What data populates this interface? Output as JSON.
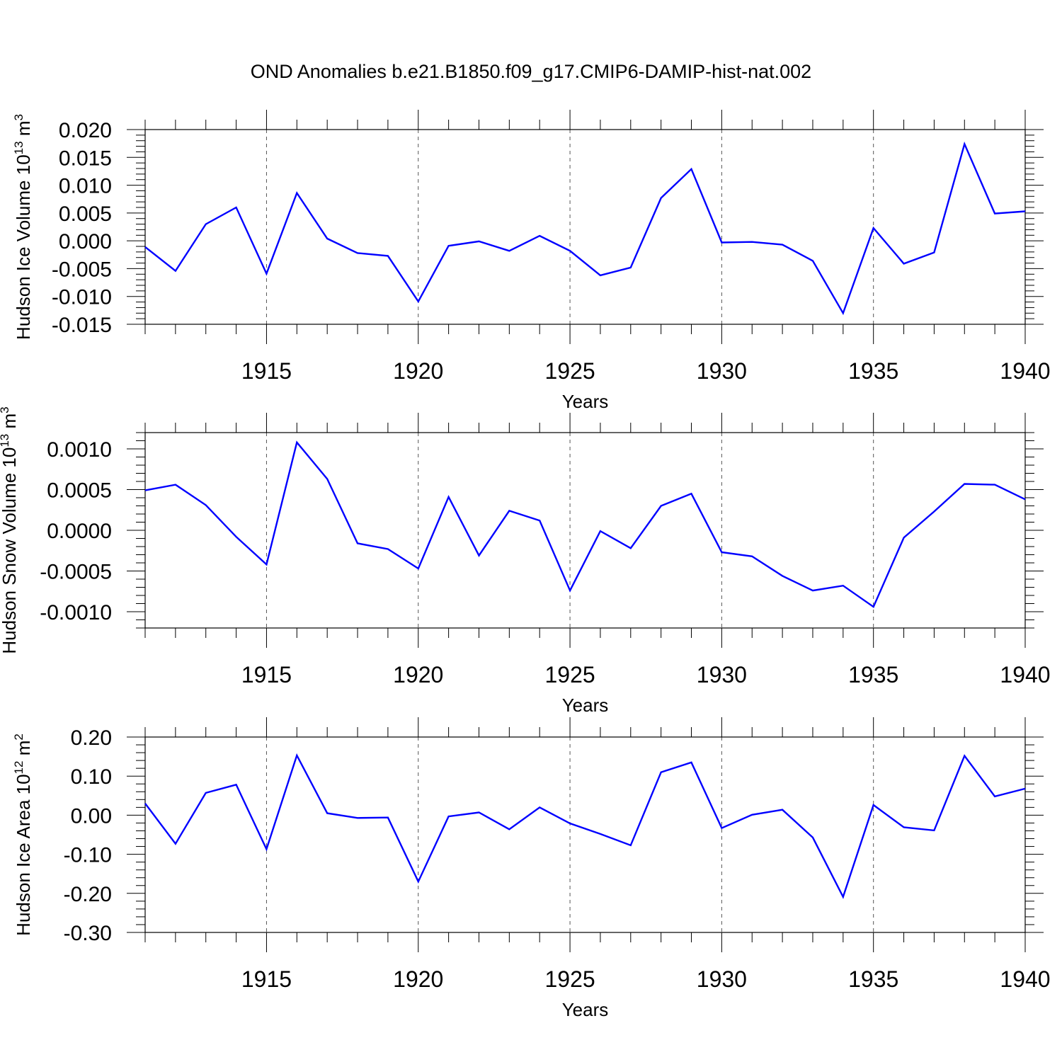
{
  "title": "OND Anomalies b.e21.B1850.f09_g17.CMIP6-DAMIP-hist-nat.002",
  "line_color": "#0000ff",
  "chart_data": [
    {
      "type": "line",
      "ylabel_base": "Hudson Ice Volume 10",
      "ylabel_exp": "13",
      "ylabel_unit": " m",
      "ylabel_unit_exp": "3",
      "xlabel": "Years",
      "xlim": [
        1911,
        1940
      ],
      "ylim": [
        -0.015,
        0.02
      ],
      "yticks": [
        {
          "v": 0.02,
          "label": "0.020"
        },
        {
          "v": 0.015,
          "label": "0.015"
        },
        {
          "v": 0.01,
          "label": "0.010"
        },
        {
          "v": 0.005,
          "label": "0.005"
        },
        {
          "v": 0.0,
          "label": "0.000"
        },
        {
          "v": -0.005,
          "label": "-0.005"
        },
        {
          "v": -0.01,
          "label": "-0.010"
        },
        {
          "v": -0.015,
          "label": "-0.015"
        }
      ],
      "xticks": [
        {
          "v": 1915,
          "label": "1915"
        },
        {
          "v": 1920,
          "label": "1920"
        },
        {
          "v": 1925,
          "label": "1925"
        },
        {
          "v": 1930,
          "label": "1930"
        },
        {
          "v": 1935,
          "label": "1935"
        },
        {
          "v": 1940,
          "label": "1940"
        }
      ],
      "x": [
        1911,
        1912,
        1913,
        1914,
        1915,
        1916,
        1917,
        1918,
        1919,
        1920,
        1921,
        1922,
        1923,
        1924,
        1925,
        1926,
        1927,
        1928,
        1929,
        1930,
        1931,
        1932,
        1933,
        1934,
        1935,
        1936,
        1937,
        1938,
        1939,
        1940
      ],
      "values": [
        -0.0011,
        -0.0054,
        0.003,
        0.006,
        -0.0059,
        0.0086,
        0.0004,
        -0.0022,
        -0.0027,
        -0.0109,
        -0.0009,
        -0.0001,
        -0.0018,
        0.0009,
        -0.0018,
        -0.0062,
        -0.0048,
        0.0077,
        0.0129,
        -0.0003,
        -0.0002,
        -0.0007,
        -0.0036,
        -0.013,
        0.0023,
        -0.0041,
        -0.0021,
        0.0174,
        0.0049,
        0.0053
      ]
    },
    {
      "type": "line",
      "ylabel_base": "Hudson Snow Volume 10",
      "ylabel_exp": "13",
      "ylabel_unit": " m",
      "ylabel_unit_exp": "3",
      "xlabel": "Years",
      "xlim": [
        1911,
        1940
      ],
      "ylim": [
        -0.0012,
        0.0012
      ],
      "yticks": [
        {
          "v": 0.001,
          "label": "0.0010"
        },
        {
          "v": 0.0005,
          "label": "0.0005"
        },
        {
          "v": 0.0,
          "label": "0.0000"
        },
        {
          "v": -0.0005,
          "label": "-0.0005"
        },
        {
          "v": -0.001,
          "label": "-0.0010"
        }
      ],
      "xticks": [
        {
          "v": 1915,
          "label": "1915"
        },
        {
          "v": 1920,
          "label": "1920"
        },
        {
          "v": 1925,
          "label": "1925"
        },
        {
          "v": 1930,
          "label": "1930"
        },
        {
          "v": 1935,
          "label": "1935"
        },
        {
          "v": 1940,
          "label": "1940"
        }
      ],
      "x": [
        1911,
        1912,
        1913,
        1914,
        1915,
        1916,
        1917,
        1918,
        1919,
        1920,
        1921,
        1922,
        1923,
        1924,
        1925,
        1926,
        1927,
        1928,
        1929,
        1930,
        1931,
        1932,
        1933,
        1934,
        1935,
        1936,
        1937,
        1938,
        1939,
        1940
      ],
      "values": [
        0.00049,
        0.00056,
        0.00031,
        -8e-05,
        -0.00042,
        0.00108,
        0.00063,
        -0.00016,
        -0.00023,
        -0.00047,
        0.00041,
        -0.00031,
        0.00024,
        0.00012,
        -0.00074,
        -1e-05,
        -0.00022,
        0.0003,
        0.00045,
        -0.00027,
        -0.00032,
        -0.00056,
        -0.00074,
        -0.00068,
        -0.00094,
        -9e-05,
        0.00023,
        0.00057,
        0.00056,
        0.00038
      ]
    },
    {
      "type": "line",
      "ylabel_base": "Hudson Ice Area 10",
      "ylabel_exp": "12",
      "ylabel_unit": " m",
      "ylabel_unit_exp": "2",
      "xlabel": "Years",
      "xlim": [
        1911,
        1940
      ],
      "ylim": [
        -0.3,
        0.2
      ],
      "yticks": [
        {
          "v": 0.2,
          "label": "0.20"
        },
        {
          "v": 0.1,
          "label": "0.10"
        },
        {
          "v": 0.0,
          "label": "0.00"
        },
        {
          "v": -0.1,
          "label": "-0.10"
        },
        {
          "v": -0.2,
          "label": "-0.20"
        },
        {
          "v": -0.3,
          "label": "-0.30"
        }
      ],
      "xticks": [
        {
          "v": 1915,
          "label": "1915"
        },
        {
          "v": 1920,
          "label": "1920"
        },
        {
          "v": 1925,
          "label": "1925"
        },
        {
          "v": 1930,
          "label": "1930"
        },
        {
          "v": 1935,
          "label": "1935"
        },
        {
          "v": 1940,
          "label": "1940"
        }
      ],
      "x": [
        1911,
        1912,
        1913,
        1914,
        1915,
        1916,
        1917,
        1918,
        1919,
        1920,
        1921,
        1922,
        1923,
        1924,
        1925,
        1926,
        1927,
        1928,
        1929,
        1930,
        1931,
        1932,
        1933,
        1934,
        1935,
        1936,
        1937,
        1938,
        1939,
        1940
      ],
      "values": [
        0.03,
        -0.073,
        0.057,
        0.078,
        -0.087,
        0.153,
        0.005,
        -0.007,
        -0.006,
        -0.17,
        -0.003,
        0.007,
        -0.036,
        0.02,
        -0.021,
        -0.048,
        -0.077,
        0.11,
        0.135,
        -0.033,
        0.001,
        0.014,
        -0.057,
        -0.209,
        0.026,
        -0.031,
        -0.039,
        0.152,
        0.048,
        0.068
      ]
    }
  ]
}
